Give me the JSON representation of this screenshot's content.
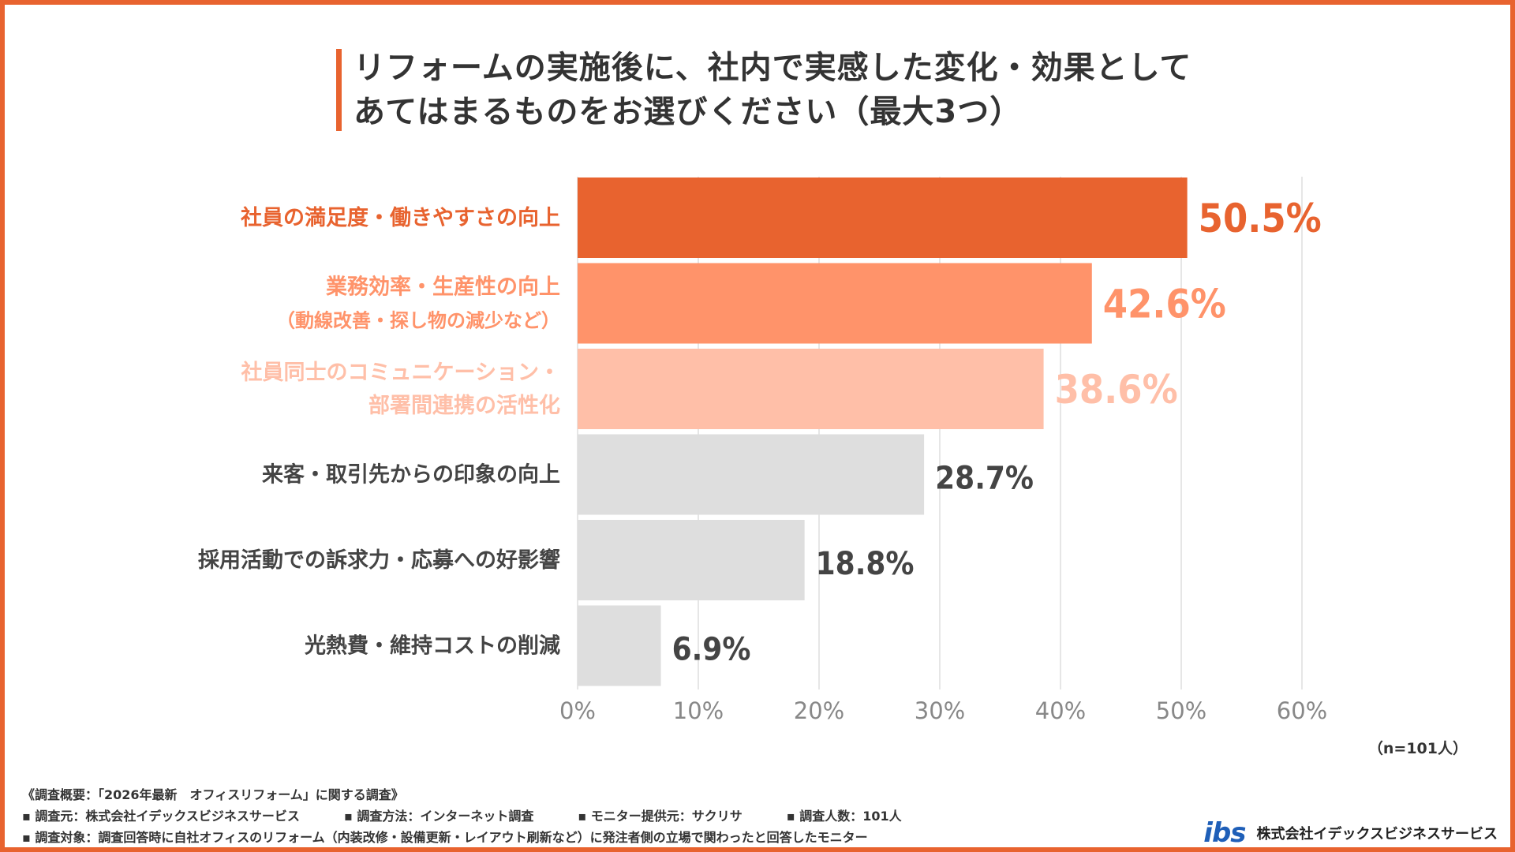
{
  "title": {
    "line1": "リフォームの実施後に、社内で実感した変化・効果として",
    "line2": "あてはまるものをお選びください（最大3つ）"
  },
  "chart_data": {
    "type": "bar",
    "orientation": "horizontal",
    "title": "リフォームの実施後に、社内で実感した変化・効果として あてはまるものをお選びください（最大3つ）",
    "categories": [
      [
        "社員の満足度・働きやすさの向上"
      ],
      [
        "業務効率・生産性の向上",
        "（動線改善・探し物の減少など）"
      ],
      [
        "社員同士のコミュニケーション・",
        "部署間連携の活性化"
      ],
      [
        "来客・取引先からの印象の向上"
      ],
      [
        "採用活動での訴求力・応募への好影響"
      ],
      [
        "光熱費・維持コストの削減"
      ]
    ],
    "values": [
      50.5,
      42.6,
      38.6,
      28.7,
      18.8,
      6.9
    ],
    "value_labels": [
      "50.5%",
      "42.6%",
      "38.6%",
      "28.7%",
      "18.8%",
      "6.9%"
    ],
    "bar_colors": [
      "#e8632f",
      "#ff936a",
      "#ffbfa8",
      "#dedede",
      "#dedede",
      "#dedede"
    ],
    "label_colors": [
      "#e8632f",
      "#ff936a",
      "#ffbfa8",
      "#444444",
      "#444444",
      "#444444"
    ],
    "xlim": [
      0,
      60
    ],
    "ticks": [
      0,
      10,
      20,
      30,
      40,
      50,
      60
    ],
    "tick_labels": [
      "0%",
      "10%",
      "20%",
      "30%",
      "40%",
      "50%",
      "60%"
    ],
    "grid": true
  },
  "n_label": "（n=101人）",
  "footer": {
    "line1": "《調査概要：「2026年最新　オフィスリフォーム」に関する調査》",
    "line2_items": [
      "▪ 調査元：株式会社イデックスビジネスサービス",
      "▪ 調査方法：インターネット調査",
      "▪ モニター提供元：サクリサ",
      "▪ 調査人数：101人"
    ],
    "line3": "▪ 調査対象：調査回答時に自社オフィスのリフォーム（内装改修・設備更新・レイアウト刷新など）に発注者側の立場で関わったと回答したモニター"
  },
  "brand": {
    "logo": "ibs",
    "name": "株式会社イデックスビジネスサービス"
  }
}
